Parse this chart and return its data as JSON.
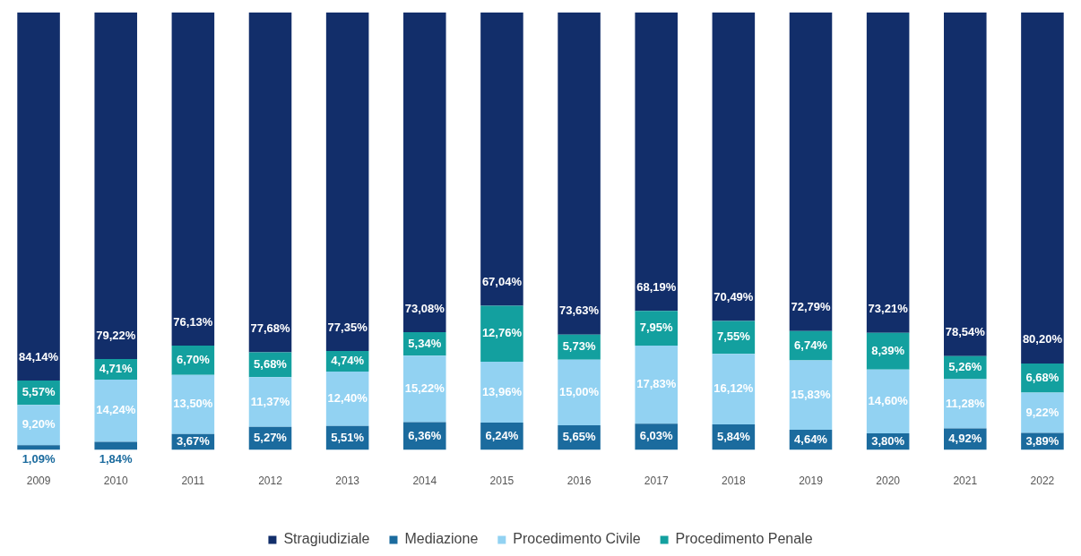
{
  "chart_data": {
    "type": "bar",
    "stacked": true,
    "categories": [
      "2009",
      "2010",
      "2011",
      "2012",
      "2013",
      "2014",
      "2015",
      "2016",
      "2017",
      "2018",
      "2019",
      "2020",
      "2021",
      "2022"
    ],
    "ylim": [
      0,
      100
    ],
    "tick_labels": "x",
    "grid": false,
    "legend": "bottom",
    "series": [
      {
        "name": "Mediazione",
        "color": "#1b6b9e",
        "values": [
          1.09,
          1.84,
          3.67,
          5.27,
          5.51,
          6.36,
          6.24,
          5.65,
          6.03,
          5.84,
          4.64,
          3.8,
          4.92,
          3.89
        ],
        "value_labels": [
          "1,09%",
          "1,84%",
          "3,67%",
          "5,27%",
          "5,51%",
          "6,36%",
          "6,24%",
          "5,65%",
          "6,03%",
          "5,84%",
          "4,64%",
          "3,80%",
          "4,92%",
          "3,89%"
        ]
      },
      {
        "name": "Procedimento Civile",
        "color": "#92d2f2",
        "values": [
          9.2,
          14.24,
          13.5,
          11.37,
          12.4,
          15.22,
          13.96,
          15.0,
          17.83,
          16.12,
          15.83,
          14.6,
          11.28,
          9.22
        ],
        "value_labels": [
          "9,20%",
          "14,24%",
          "13,50%",
          "11,37%",
          "12,40%",
          "15,22%",
          "13,96%",
          "15,00%",
          "17,83%",
          "16,12%",
          "15,83%",
          "14,60%",
          "11,28%",
          "9,22%"
        ]
      },
      {
        "name": "Procedimento Penale",
        "color": "#13a09f",
        "values": [
          5.57,
          4.71,
          6.7,
          5.68,
          4.74,
          5.34,
          12.76,
          5.73,
          7.95,
          7.55,
          6.74,
          8.39,
          5.26,
          6.68
        ],
        "value_labels": [
          "5,57%",
          "4,71%",
          "6,70%",
          "5,68%",
          "4,74%",
          "5,34%",
          "12,76%",
          "5,73%",
          "7,95%",
          "7,55%",
          "6,74%",
          "8,39%",
          "5,26%",
          "6,68%"
        ]
      },
      {
        "name": "Stragiudiziale",
        "color": "#122e6a",
        "values": [
          84.14,
          79.22,
          76.13,
          77.68,
          77.35,
          73.08,
          67.04,
          73.63,
          68.19,
          70.49,
          72.79,
          73.21,
          78.54,
          80.2
        ],
        "value_labels": [
          "84,14%",
          "79,22%",
          "76,13%",
          "77,68%",
          "77,35%",
          "73,08%",
          "67,04%",
          "73,63%",
          "68,19%",
          "70,49%",
          "72,79%",
          "73,21%",
          "78,54%",
          "80,20%"
        ]
      }
    ]
  }
}
